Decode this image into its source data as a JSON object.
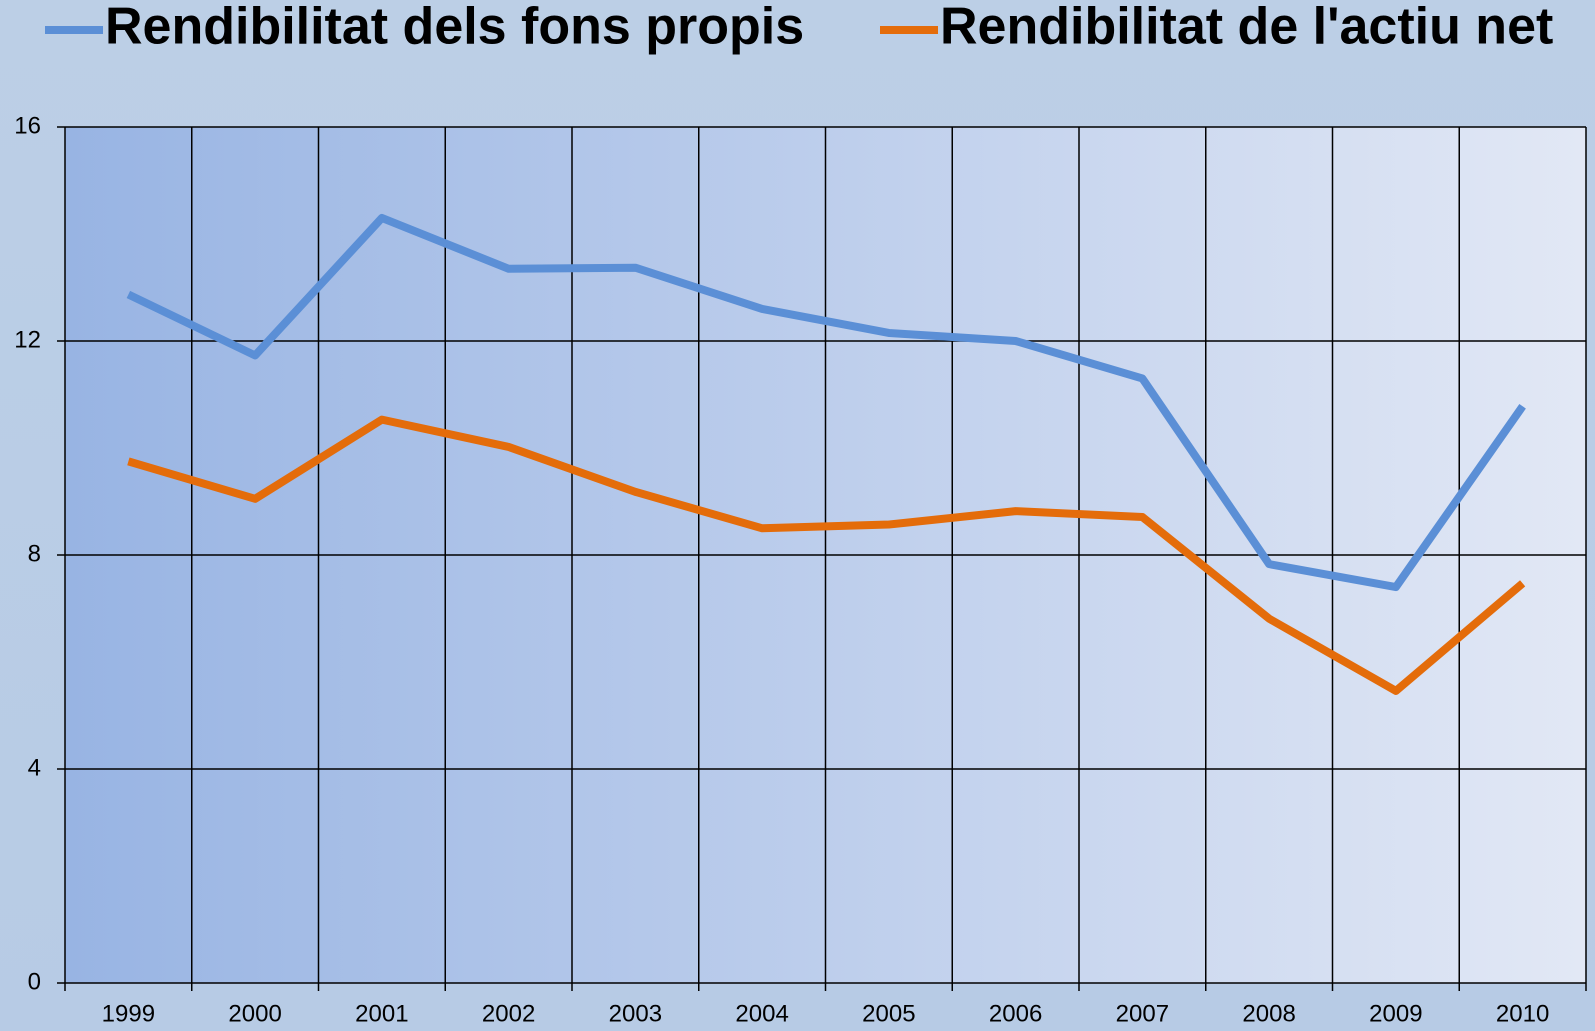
{
  "chart_data": {
    "type": "line",
    "categories": [
      "1999",
      "2000",
      "2001",
      "2002",
      "2003",
      "2004",
      "2005",
      "2006",
      "2007",
      "2008",
      "2009",
      "2010"
    ],
    "series": [
      {
        "name": "Rendibilitat dels fons propis",
        "color": "#5b8fd6",
        "values": [
          12.87,
          11.73,
          14.3,
          13.35,
          13.37,
          12.6,
          12.15,
          12.0,
          11.3,
          7.83,
          7.4,
          10.78
        ]
      },
      {
        "name": "Rendibilitat de l'actiu net",
        "color": "#e46c0a",
        "values": [
          9.75,
          9.05,
          10.53,
          10.02,
          9.18,
          8.5,
          8.57,
          8.82,
          8.71,
          6.81,
          5.46,
          7.47
        ]
      }
    ],
    "ylim": [
      0,
      16
    ],
    "yticks": [
      0,
      4,
      8,
      12,
      16
    ],
    "grid": true
  }
}
